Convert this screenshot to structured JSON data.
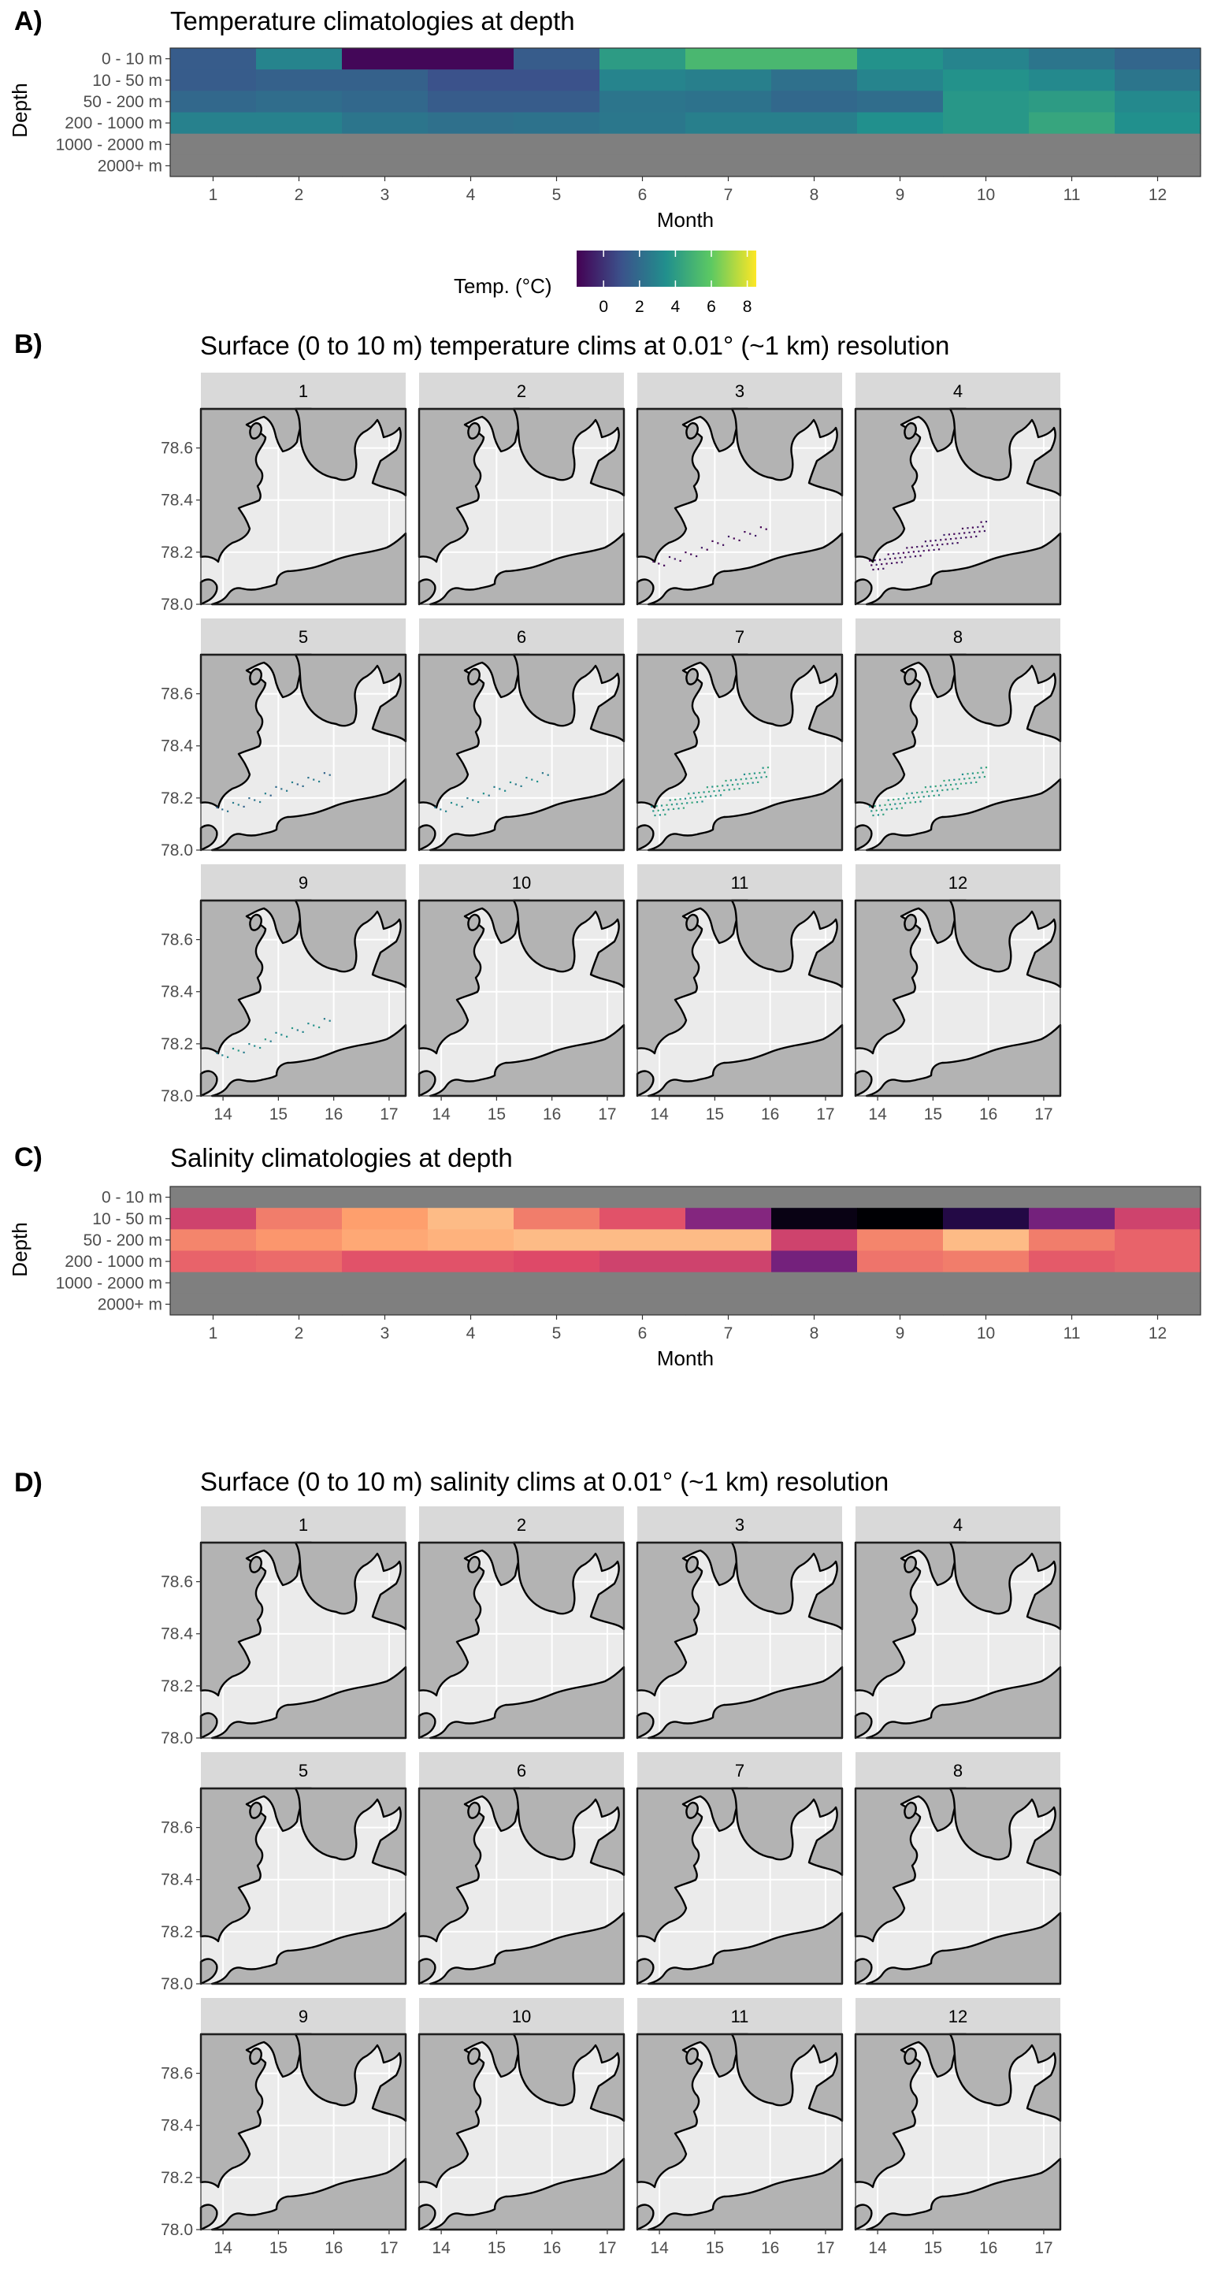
{
  "colors": {
    "land": "#b3b3b3",
    "sea": "#ebebeb",
    "grid": "#ffffff",
    "strip": "#d9d9d9",
    "na": "#7f7f7f",
    "viridis": [
      "#440154",
      "#3b528b",
      "#21908d",
      "#5dc962",
      "#fde725"
    ],
    "magma": [
      "#000004",
      "#3b0f70",
      "#8c2981",
      "#de4968",
      "#fe9f6d",
      "#fcfdbf"
    ]
  },
  "panel_labels": [
    "A)",
    "B)",
    "C)",
    "D)"
  ],
  "chart_data": [
    {
      "type": "heatmap",
      "title": "Temperature climatologies at depth",
      "xlabel": "Month",
      "ylabel": "Depth",
      "x": [
        "1",
        "2",
        "3",
        "4",
        "5",
        "6",
        "7",
        "8",
        "9",
        "10",
        "11",
        "12"
      ],
      "y": [
        "0 - 10 m",
        "10 - 50 m",
        "50 - 200 m",
        "200 - 1000 m",
        "1000 - 2000 m",
        "2000+ m"
      ],
      "colorscale": "viridis",
      "legend": {
        "title": "Temp. (°C)",
        "ticks": [
          "0",
          "2",
          "4",
          "6",
          "8"
        ],
        "range": [
          -1.5,
          8.5
        ],
        "position": "bottom"
      },
      "values": [
        [
          1.4,
          3.0,
          -1.3,
          -1.3,
          1.4,
          4.0,
          5.2,
          5.2,
          3.6,
          3.0,
          2.4,
          1.8
        ],
        [
          1.4,
          1.6,
          1.6,
          1.0,
          1.0,
          3.0,
          2.8,
          2.2,
          3.0,
          3.6,
          3.2,
          2.4
        ],
        [
          1.9,
          2.1,
          1.9,
          1.4,
          1.4,
          2.4,
          2.3,
          1.9,
          2.1,
          3.8,
          4.0,
          3.2
        ],
        [
          2.9,
          2.9,
          2.4,
          2.2,
          2.3,
          2.5,
          2.8,
          2.8,
          3.5,
          3.8,
          4.4,
          3.5
        ],
        [
          null,
          null,
          null,
          null,
          null,
          null,
          null,
          null,
          null,
          null,
          null,
          null
        ],
        [
          null,
          null,
          null,
          null,
          null,
          null,
          null,
          null,
          null,
          null,
          null,
          null
        ]
      ]
    },
    {
      "type": "map",
      "title": "Surface (0 to 10 m) temperature clims at 0.01° (~1 km) resolution",
      "facets": [
        "1",
        "2",
        "3",
        "4",
        "5",
        "6",
        "7",
        "8",
        "9",
        "10",
        "11",
        "12"
      ],
      "facet_points": [
        "none",
        "none",
        "sparse",
        "dense",
        "sparse",
        "sparse",
        "dense",
        "dense",
        "sparse",
        "none",
        "none",
        "none"
      ],
      "x_ticks": [
        "14",
        "15",
        "16",
        "17"
      ],
      "y_ticks": [
        "78.6",
        "78.4",
        "78.2",
        "78.0"
      ],
      "xlim": [
        13.6,
        17.3
      ],
      "ylim": [
        78.0,
        78.75
      ]
    },
    {
      "type": "heatmap",
      "title": "Salinity climatologies at depth",
      "xlabel": "Month",
      "ylabel": "Depth",
      "x": [
        "1",
        "2",
        "3",
        "4",
        "5",
        "6",
        "7",
        "8",
        "9",
        "10",
        "11",
        "12"
      ],
      "y": [
        "0 - 10 m",
        "10 - 50 m",
        "50 - 200 m",
        "200 - 1000 m",
        "1000 - 2000 m",
        "2000+ m"
      ],
      "colorscale": "magma",
      "values": [
        [
          null,
          null,
          null,
          null,
          null,
          null,
          null,
          null,
          null,
          null,
          null,
          null
        ],
        [
          0.56,
          0.72,
          0.8,
          0.86,
          0.72,
          0.62,
          0.38,
          0.03,
          0.0,
          0.12,
          0.34,
          0.56
        ],
        [
          0.74,
          0.78,
          0.82,
          0.84,
          0.86,
          0.86,
          0.86,
          0.56,
          0.74,
          0.86,
          0.72,
          0.66
        ],
        [
          0.66,
          0.68,
          0.62,
          0.62,
          0.6,
          0.56,
          0.56,
          0.34,
          0.7,
          0.72,
          0.64,
          0.66
        ],
        [
          null,
          null,
          null,
          null,
          null,
          null,
          null,
          null,
          null,
          null,
          null,
          null
        ],
        [
          null,
          null,
          null,
          null,
          null,
          null,
          null,
          null,
          null,
          null,
          null,
          null
        ]
      ]
    },
    {
      "type": "map",
      "title": "Surface (0 to 10 m) salinity clims at 0.01° (~1 km) resolution",
      "facets": [
        "1",
        "2",
        "3",
        "4",
        "5",
        "6",
        "7",
        "8",
        "9",
        "10",
        "11",
        "12"
      ],
      "facet_points": [
        "none",
        "none",
        "none",
        "none",
        "none",
        "none",
        "none",
        "none",
        "none",
        "none",
        "none",
        "none"
      ],
      "x_ticks": [
        "14",
        "15",
        "16",
        "17"
      ],
      "y_ticks": [
        "78.6",
        "78.4",
        "78.2",
        "78.0"
      ],
      "xlim": [
        13.6,
        17.3
      ],
      "ylim": [
        78.0,
        78.75
      ]
    }
  ]
}
